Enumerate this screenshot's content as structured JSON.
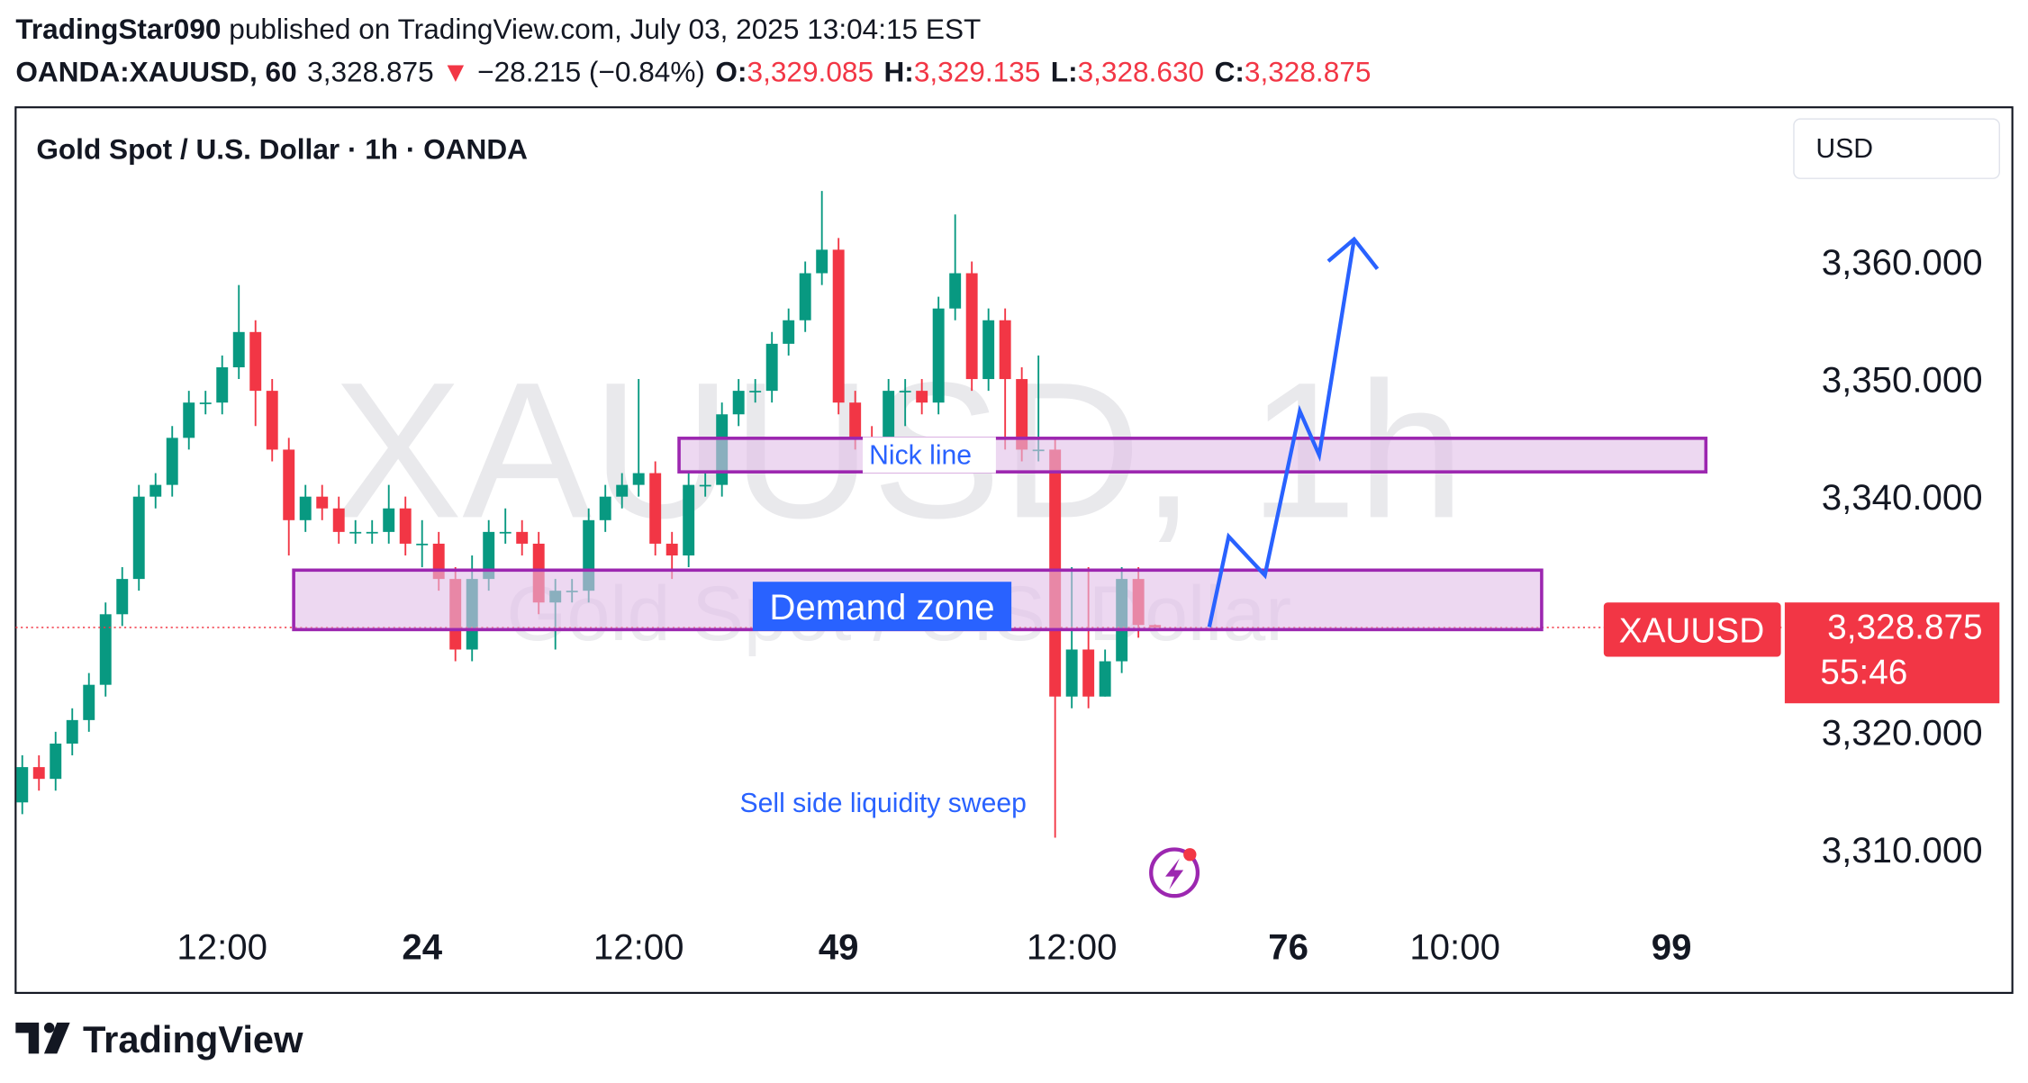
{
  "header": {
    "author": "TradingStar090",
    "published": "published on TradingView.com, July 03, 2025 13:04:15 EST",
    "symbol": "OANDA:XAUUSD, 60",
    "last": "3,328.875",
    "arrow": "▼",
    "change": "−28.215 (−0.84%)",
    "o_label": "O:",
    "o_value": "3,329.085",
    "h_label": "H:",
    "h_value": "3,329.135",
    "l_label": "L:",
    "l_value": "3,328.630",
    "c_label": "C:",
    "c_value": "3,328.875"
  },
  "chart_data": {
    "type": "candlestick",
    "title": "Gold Spot / U.S. Dollar · 1h · OANDA",
    "currency": "USD",
    "watermark": "XAUUSD, 1h",
    "watermark_subtitle": "Gold Spot / U.S. Dollar",
    "up_color": "#089981",
    "down_color": "#f23645",
    "open": [
      3314,
      3317,
      3316,
      3319,
      3321,
      3324,
      3330,
      3333,
      3340,
      3341,
      3345,
      3348,
      3348,
      3351,
      3354,
      3349,
      3344,
      3338,
      3340,
      3339,
      3337,
      3337,
      3337,
      3339,
      3336,
      3336,
      3333,
      3327,
      3333,
      3337,
      3337,
      3336,
      3331,
      3332,
      3332,
      3338,
      3340,
      3341,
      3342,
      3336,
      3335,
      3341,
      3341,
      3347,
      3349,
      3349,
      3353,
      3355,
      3359,
      3361,
      3348,
      3345,
      3344,
      3349,
      3349,
      3348,
      3356,
      3359,
      3350,
      3355,
      3350,
      3344,
      3344,
      3323,
      3327,
      3323,
      3326,
      3333,
      3329.085
    ],
    "high": [
      3318,
      3318,
      3320,
      3322,
      3325,
      3331,
      3334,
      3341,
      3342,
      3346,
      3349,
      3349,
      3352,
      3358,
      3355,
      3350,
      3345,
      3341,
      3341,
      3340,
      3338,
      3338,
      3341,
      3340,
      3338,
      3337,
      3334,
      3335,
      3338,
      3339,
      3338,
      3337,
      3333,
      3333,
      3339,
      3341,
      3342,
      3350,
      3343,
      3337,
      3342,
      3342,
      3348,
      3350,
      3350,
      3354,
      3356,
      3360,
      3366,
      3362,
      3349,
      3346,
      3350,
      3350,
      3350,
      3357,
      3364,
      3360,
      3356,
      3356,
      3351,
      3352,
      3345,
      3334,
      3334,
      3327,
      3334,
      3334,
      3329.135
    ],
    "low": [
      3313,
      3315,
      3315,
      3318,
      3320,
      3323,
      3329,
      3332,
      3339,
      3340,
      3344,
      3347,
      3347,
      3350,
      3346,
      3343,
      3335,
      3337,
      3338,
      3336,
      3336,
      3336,
      3336,
      3335,
      3334,
      3332,
      3326,
      3326,
      3332,
      3336,
      3335,
      3330,
      3327,
      3331,
      3331,
      3337,
      3339,
      3340,
      3335,
      3333,
      3334,
      3340,
      3340,
      3346,
      3348,
      3348,
      3352,
      3354,
      3358,
      3347,
      3344,
      3342,
      3343,
      3346,
      3347,
      3347,
      3355,
      3349,
      3349,
      3344,
      3343,
      3343,
      3311,
      3322,
      3322,
      3323,
      3325,
      3328,
      3328.63
    ],
    "close": [
      3317,
      3316,
      3319,
      3321,
      3324,
      3330,
      3333,
      3340,
      3341,
      3345,
      3348,
      3348,
      3351,
      3354,
      3349,
      3344,
      3338,
      3340,
      3339,
      3337,
      3337,
      3337,
      3339,
      3336,
      3336,
      3333,
      3327,
      3333,
      3337,
      3337,
      3336,
      3331,
      3332,
      3332,
      3338,
      3340,
      3341,
      3342,
      3336,
      3335,
      3341,
      3341,
      3347,
      3349,
      3349,
      3353,
      3355,
      3359,
      3361,
      3348,
      3345,
      3344,
      3349,
      3349,
      3348,
      3356,
      3359,
      3350,
      3355,
      3350,
      3344,
      3344,
      3323,
      3327,
      3323,
      3326,
      3333,
      3329.085,
      3328.875
    ],
    "xlim": [
      -0.4,
      105.8
    ],
    "xticks": [
      {
        "value": 12,
        "label": "12:00"
      },
      24,
      {
        "value": 37,
        "label": "12:00"
      },
      49,
      {
        "value": 63,
        "label": "12:00"
      },
      76,
      {
        "value": 86,
        "label": "10:00"
      },
      99
    ],
    "xtick_bold": [
      false,
      true,
      false,
      true,
      false,
      true,
      false,
      true
    ],
    "ylim": [
      3297.8,
      3373
    ],
    "yticks": [
      {
        "value": 3310,
        "label": "3,310.000"
      },
      {
        "value": 3320,
        "label": "3,320.000"
      },
      {
        "value": 3340,
        "label": "3,340.000"
      },
      {
        "value": 3350,
        "label": "3,350.000"
      },
      {
        "value": 3360,
        "label": "3,360.000"
      }
    ],
    "price_tag": {
      "symbol": "XAUUSD",
      "price": "3,328.875",
      "countdown": "55:46"
    },
    "annotations": {
      "nick_line": "Nick line",
      "demand_zone": "Demand zone",
      "sweep": "Sell side liquidity sweep"
    },
    "logo": "TradingView"
  }
}
